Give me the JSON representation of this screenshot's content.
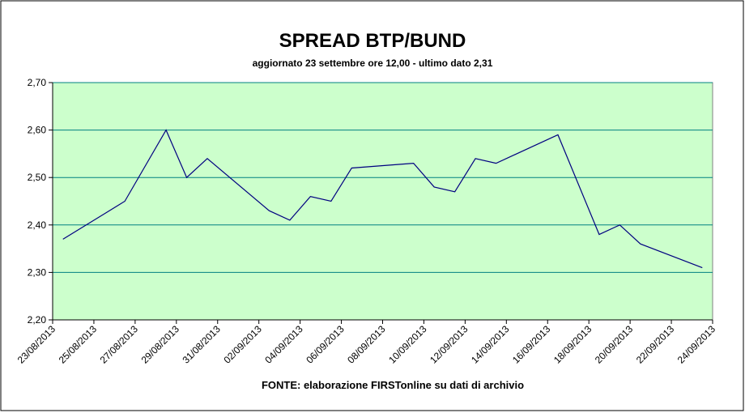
{
  "chart_data": {
    "type": "line",
    "title": "SPREAD BTP/BUND",
    "subtitle": "aggiornato 23 settembre ore 12,00  - ultimo dato 2,31",
    "source": "FONTE:  elaborazione FIRSTonline su dati di archivio",
    "x": [
      "23/08/2013",
      "26/08/2013",
      "28/08/2013",
      "29/08/2013",
      "30/08/2013",
      "02/09/2013",
      "03/09/2013",
      "04/09/2013",
      "05/09/2013",
      "06/09/2013",
      "09/09/2013",
      "10/09/2013",
      "11/09/2013",
      "12/09/2013",
      "13/09/2013",
      "16/09/2013",
      "18/09/2013",
      "19/09/2013",
      "20/09/2013",
      "23/09/2013"
    ],
    "series": [
      {
        "color": "#000080",
        "values": [
          2.37,
          2.45,
          2.6,
          2.5,
          2.54,
          2.43,
          2.41,
          2.46,
          2.45,
          2.52,
          2.53,
          2.48,
          2.47,
          2.54,
          2.53,
          2.59,
          2.38,
          2.4,
          2.36,
          2.31
        ]
      }
    ],
    "xlim": [
      "23/08/2013",
      "24/09/2013"
    ],
    "xticks": [
      "23/08/2013",
      "25/08/2013",
      "27/08/2013",
      "29/08/2013",
      "31/08/2013",
      "02/09/2013",
      "04/09/2013",
      "06/09/2013",
      "08/09/2013",
      "10/09/2013",
      "12/09/2013",
      "14/09/2013",
      "16/09/2013",
      "18/09/2013",
      "20/09/2013",
      "22/09/2013",
      "24/09/2013"
    ],
    "ylim": [
      2.2,
      2.7
    ],
    "yticks": [
      {
        "value": 2.2,
        "label": "2,20"
      },
      {
        "value": 2.3,
        "label": "2,30"
      },
      {
        "value": 2.4,
        "label": "2,40"
      },
      {
        "value": 2.5,
        "label": "2,50"
      },
      {
        "value": 2.6,
        "label": "2,60"
      },
      {
        "value": 2.7,
        "label": "2,70"
      }
    ],
    "grid": true,
    "plot_background": "#ccffcc",
    "grid_color": "#008080"
  }
}
